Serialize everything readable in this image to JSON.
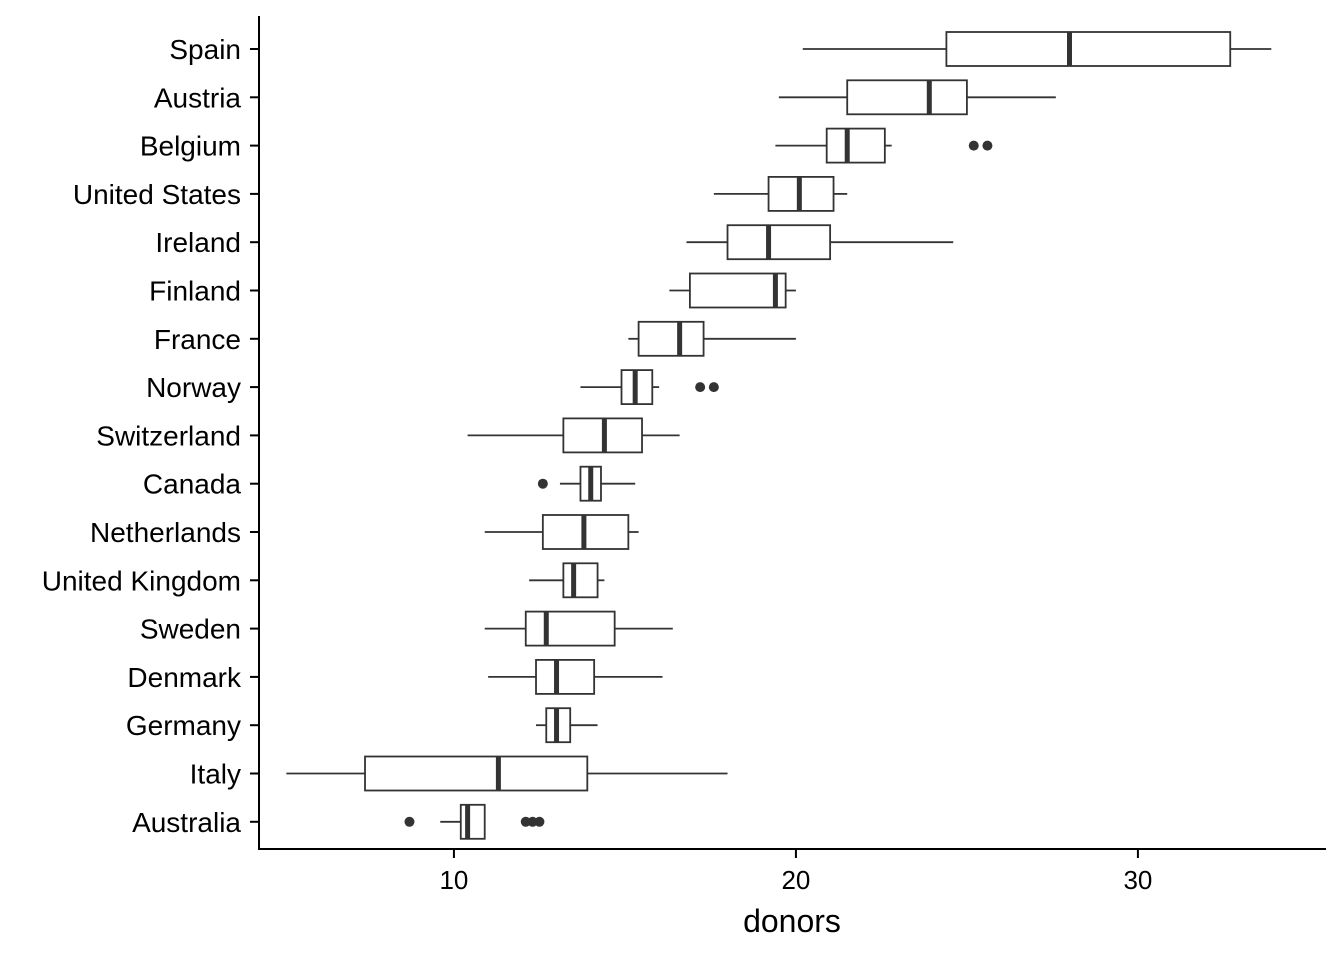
{
  "chart_data": {
    "type": "boxplot",
    "orientation": "horizontal",
    "xlabel": "donors",
    "ylabel": "",
    "xlim": [
      4.3,
      35.5
    ],
    "xticks": [
      10,
      20,
      30
    ],
    "grid": false,
    "colors": {
      "line": "#333333",
      "fill": "#ffffff",
      "axis": "#000000"
    },
    "categories": [
      "Spain",
      "Austria",
      "Belgium",
      "United States",
      "Ireland",
      "Finland",
      "France",
      "Norway",
      "Switzerland",
      "Canada",
      "Netherlands",
      "United Kingdom",
      "Sweden",
      "Denmark",
      "Germany",
      "Italy",
      "Australia"
    ],
    "boxes": [
      {
        "label": "Spain",
        "min": 20.2,
        "q1": 24.4,
        "median": 28.0,
        "q3": 32.7,
        "max": 33.9,
        "outliers": []
      },
      {
        "label": "Austria",
        "min": 19.5,
        "q1": 21.5,
        "median": 23.9,
        "q3": 25.0,
        "max": 27.6,
        "outliers": []
      },
      {
        "label": "Belgium",
        "min": 19.4,
        "q1": 20.9,
        "median": 21.5,
        "q3": 22.6,
        "max": 22.8,
        "outliers": [
          25.2,
          25.6
        ]
      },
      {
        "label": "United States",
        "min": 17.6,
        "q1": 19.2,
        "median": 20.1,
        "q3": 21.1,
        "max": 21.5,
        "outliers": []
      },
      {
        "label": "Ireland",
        "min": 16.8,
        "q1": 18.0,
        "median": 19.2,
        "q3": 21.0,
        "max": 24.6,
        "outliers": []
      },
      {
        "label": "Finland",
        "min": 16.3,
        "q1": 16.9,
        "median": 19.4,
        "q3": 19.7,
        "max": 20.0,
        "outliers": []
      },
      {
        "label": "France",
        "min": 15.1,
        "q1": 15.4,
        "median": 16.6,
        "q3": 17.3,
        "max": 20.0,
        "outliers": []
      },
      {
        "label": "Norway",
        "min": 13.7,
        "q1": 14.9,
        "median": 15.3,
        "q3": 15.8,
        "max": 16.0,
        "outliers": [
          17.2,
          17.6
        ]
      },
      {
        "label": "Switzerland",
        "min": 10.4,
        "q1": 13.2,
        "median": 14.4,
        "q3": 15.5,
        "max": 16.6,
        "outliers": []
      },
      {
        "label": "Canada",
        "min": 13.1,
        "q1": 13.7,
        "median": 14.0,
        "q3": 14.3,
        "max": 15.3,
        "outliers": [
          12.6
        ]
      },
      {
        "label": "Netherlands",
        "min": 10.9,
        "q1": 12.6,
        "median": 13.8,
        "q3": 15.1,
        "max": 15.4,
        "outliers": []
      },
      {
        "label": "United Kingdom",
        "min": 12.2,
        "q1": 13.2,
        "median": 13.5,
        "q3": 14.2,
        "max": 14.4,
        "outliers": []
      },
      {
        "label": "Sweden",
        "min": 10.9,
        "q1": 12.1,
        "median": 12.7,
        "q3": 14.7,
        "max": 16.4,
        "outliers": []
      },
      {
        "label": "Denmark",
        "min": 11.0,
        "q1": 12.4,
        "median": 13.0,
        "q3": 14.1,
        "max": 16.1,
        "outliers": []
      },
      {
        "label": "Germany",
        "min": 12.4,
        "q1": 12.7,
        "median": 13.0,
        "q3": 13.4,
        "max": 14.2,
        "outliers": []
      },
      {
        "label": "Italy",
        "min": 5.1,
        "q1": 7.4,
        "median": 11.3,
        "q3": 13.9,
        "max": 18.0,
        "outliers": []
      },
      {
        "label": "Australia",
        "min": 9.6,
        "q1": 10.2,
        "median": 10.4,
        "q3": 10.9,
        "max": 10.9,
        "outliers": [
          8.7,
          12.1,
          12.3,
          12.5
        ]
      }
    ]
  }
}
